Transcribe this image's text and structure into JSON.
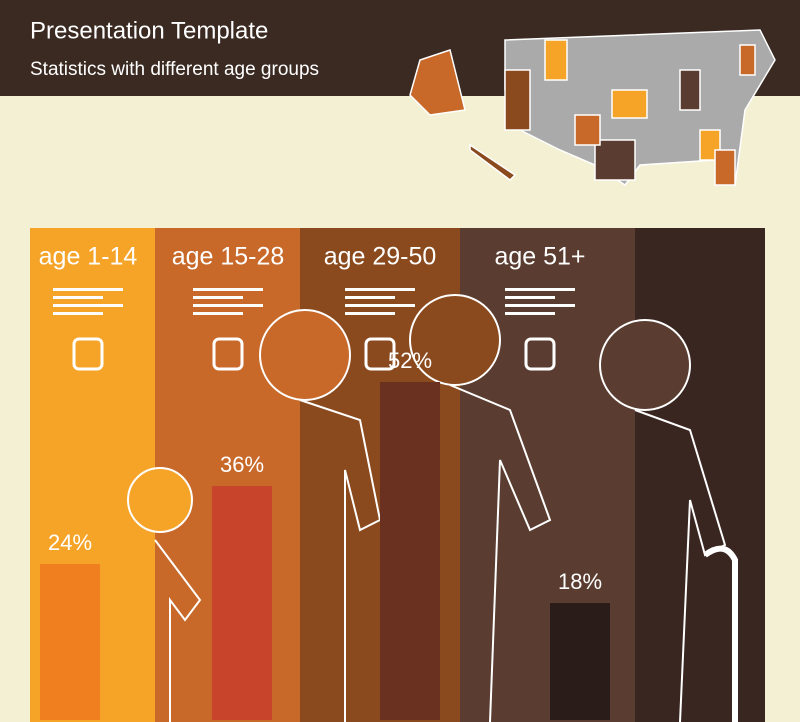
{
  "chart_data": {
    "type": "bar",
    "title": "Presentation Template",
    "subtitle": "Statistics with different age groups",
    "categories": [
      "age 1-14",
      "age 15-28",
      "age 29-50",
      "age 51+"
    ],
    "values": [
      24,
      36,
      52,
      18
    ],
    "value_labels": [
      "24%",
      "36%",
      "52%",
      "18%"
    ],
    "colors": [
      "#f07f20",
      "#c8442a",
      "#6a3020",
      "#2a1c18"
    ]
  }
}
